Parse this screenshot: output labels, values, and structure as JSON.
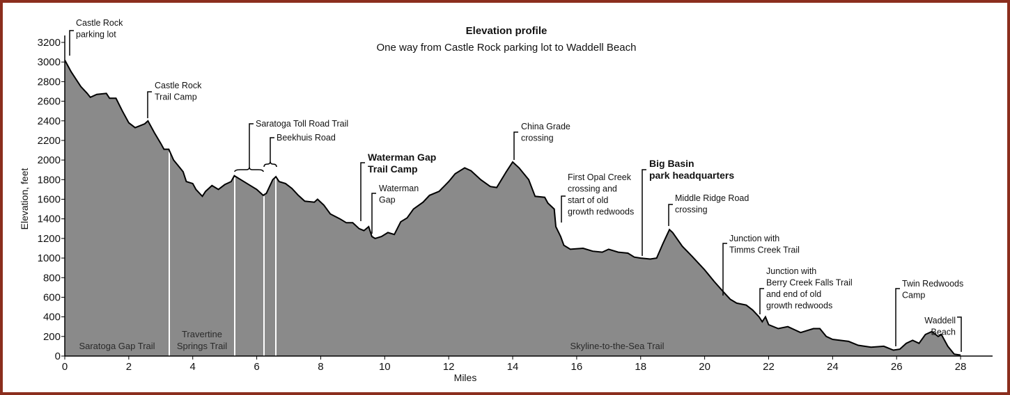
{
  "chart_data": {
    "type": "area",
    "title": "Elevation profile",
    "subtitle": "One way from Castle Rock parking lot to Waddell Beach",
    "x_label": "Miles",
    "y_label": "Elevation, feet",
    "color": "#8a8a8a",
    "xlim": [
      0,
      29
    ],
    "ylim": [
      0,
      3200
    ],
    "xticks": [
      0,
      2,
      4,
      6,
      8,
      10,
      12,
      14,
      16,
      18,
      20,
      22,
      24,
      26,
      28
    ],
    "yticks": [
      0,
      200,
      400,
      600,
      800,
      1000,
      1200,
      1400,
      1600,
      1800,
      2000,
      2200,
      2400,
      2600,
      2800,
      3000,
      3200
    ],
    "x": [
      0,
      0.2,
      0.5,
      0.7,
      0.8,
      1.0,
      1.3,
      1.4,
      1.6,
      1.8,
      2.0,
      2.2,
      2.5,
      2.6,
      2.8,
      3.0,
      3.1,
      3.25,
      3.4,
      3.6,
      3.7,
      3.8,
      4.0,
      4.1,
      4.3,
      4.4,
      4.6,
      4.8,
      5.0,
      5.2,
      5.3,
      5.5,
      5.8,
      6.0,
      6.2,
      6.3,
      6.5,
      6.6,
      6.7,
      6.9,
      7.1,
      7.3,
      7.5,
      7.8,
      7.9,
      8.1,
      8.3,
      8.6,
      8.8,
      9.0,
      9.2,
      9.35,
      9.5,
      9.6,
      9.7,
      9.9,
      10.1,
      10.3,
      10.5,
      10.7,
      10.9,
      11.2,
      11.4,
      11.7,
      12.0,
      12.2,
      12.5,
      12.7,
      13.0,
      13.3,
      13.5,
      13.8,
      14.0,
      14.2,
      14.5,
      14.7,
      15.0,
      15.1,
      15.3,
      15.35,
      15.5,
      15.6,
      15.8,
      16.2,
      16.5,
      16.8,
      17.0,
      17.3,
      17.6,
      17.8,
      18.0,
      18.3,
      18.5,
      18.7,
      18.9,
      19.0,
      19.3,
      19.6,
      20.0,
      20.3,
      20.6,
      20.8,
      21.0,
      21.3,
      21.5,
      21.7,
      21.8,
      21.9,
      22.0,
      22.3,
      22.6,
      23.0,
      23.4,
      23.6,
      23.8,
      24.0,
      24.5,
      24.8,
      25.2,
      25.6,
      25.9,
      26.1,
      26.3,
      26.5,
      26.7,
      26.9,
      27.1,
      27.3,
      27.4,
      27.6,
      27.8,
      28.0
    ],
    "values": [
      3020,
      2900,
      2750,
      2680,
      2640,
      2670,
      2680,
      2630,
      2630,
      2500,
      2380,
      2330,
      2370,
      2400,
      2280,
      2170,
      2110,
      2110,
      2000,
      1920,
      1880,
      1780,
      1760,
      1700,
      1630,
      1680,
      1740,
      1700,
      1750,
      1780,
      1840,
      1800,
      1740,
      1700,
      1640,
      1660,
      1800,
      1830,
      1780,
      1760,
      1710,
      1640,
      1580,
      1570,
      1600,
      1540,
      1450,
      1400,
      1360,
      1360,
      1300,
      1280,
      1320,
      1220,
      1200,
      1220,
      1260,
      1240,
      1370,
      1410,
      1500,
      1570,
      1640,
      1680,
      1780,
      1860,
      1920,
      1890,
      1800,
      1730,
      1720,
      1880,
      1980,
      1920,
      1800,
      1630,
      1620,
      1560,
      1500,
      1320,
      1220,
      1130,
      1090,
      1100,
      1070,
      1060,
      1090,
      1060,
      1050,
      1010,
      1000,
      990,
      1000,
      1150,
      1290,
      1260,
      1120,
      1020,
      880,
      760,
      650,
      580,
      540,
      520,
      470,
      400,
      350,
      400,
      320,
      280,
      300,
      240,
      280,
      280,
      200,
      170,
      150,
      110,
      90,
      100,
      60,
      70,
      130,
      160,
      130,
      220,
      250,
      200,
      220,
      100,
      20,
      10
    ],
    "annotations": [
      {
        "lines": [
          "Castle Rock",
          "parking lot"
        ],
        "bold": false
      },
      {
        "lines": [
          "Castle Rock",
          "Trail Camp"
        ],
        "bold": false
      },
      {
        "lines": [
          "Saratoga Toll Road Trail"
        ],
        "bold": false
      },
      {
        "lines": [
          "Beekhuis Road"
        ],
        "bold": false
      },
      {
        "lines": [
          "Waterman Gap",
          "Trail Camp"
        ],
        "bold": true
      },
      {
        "lines": [
          "Waterman",
          "Gap"
        ],
        "bold": false
      },
      {
        "lines": [
          "China Grade",
          "crossing"
        ],
        "bold": false
      },
      {
        "lines": [
          "First Opal Creek",
          "crossing and",
          "start of old",
          "growth redwoods"
        ],
        "bold": false
      },
      {
        "lines": [
          "Big Basin",
          "park headquarters"
        ],
        "bold": true
      },
      {
        "lines": [
          "Middle Ridge Road",
          "crossing"
        ],
        "bold": false
      },
      {
        "lines": [
          "Junction with",
          "Timms Creek Trail"
        ],
        "bold": false
      },
      {
        "lines": [
          "Junction with",
          "Berry Creek Falls Trail",
          "and end of old",
          "growth redwoods"
        ],
        "bold": false
      },
      {
        "lines": [
          "Twin Redwoods",
          "Camp"
        ],
        "bold": false
      },
      {
        "lines": [
          "Waddell",
          "Beach"
        ],
        "bold": false
      }
    ],
    "sections": [
      {
        "lines": [
          "Saratoga Gap Trail"
        ]
      },
      {
        "lines": [
          "Travertine",
          "Springs Trail"
        ]
      },
      {
        "lines": [
          "Skyline-to-the-Sea Trail"
        ]
      }
    ]
  }
}
